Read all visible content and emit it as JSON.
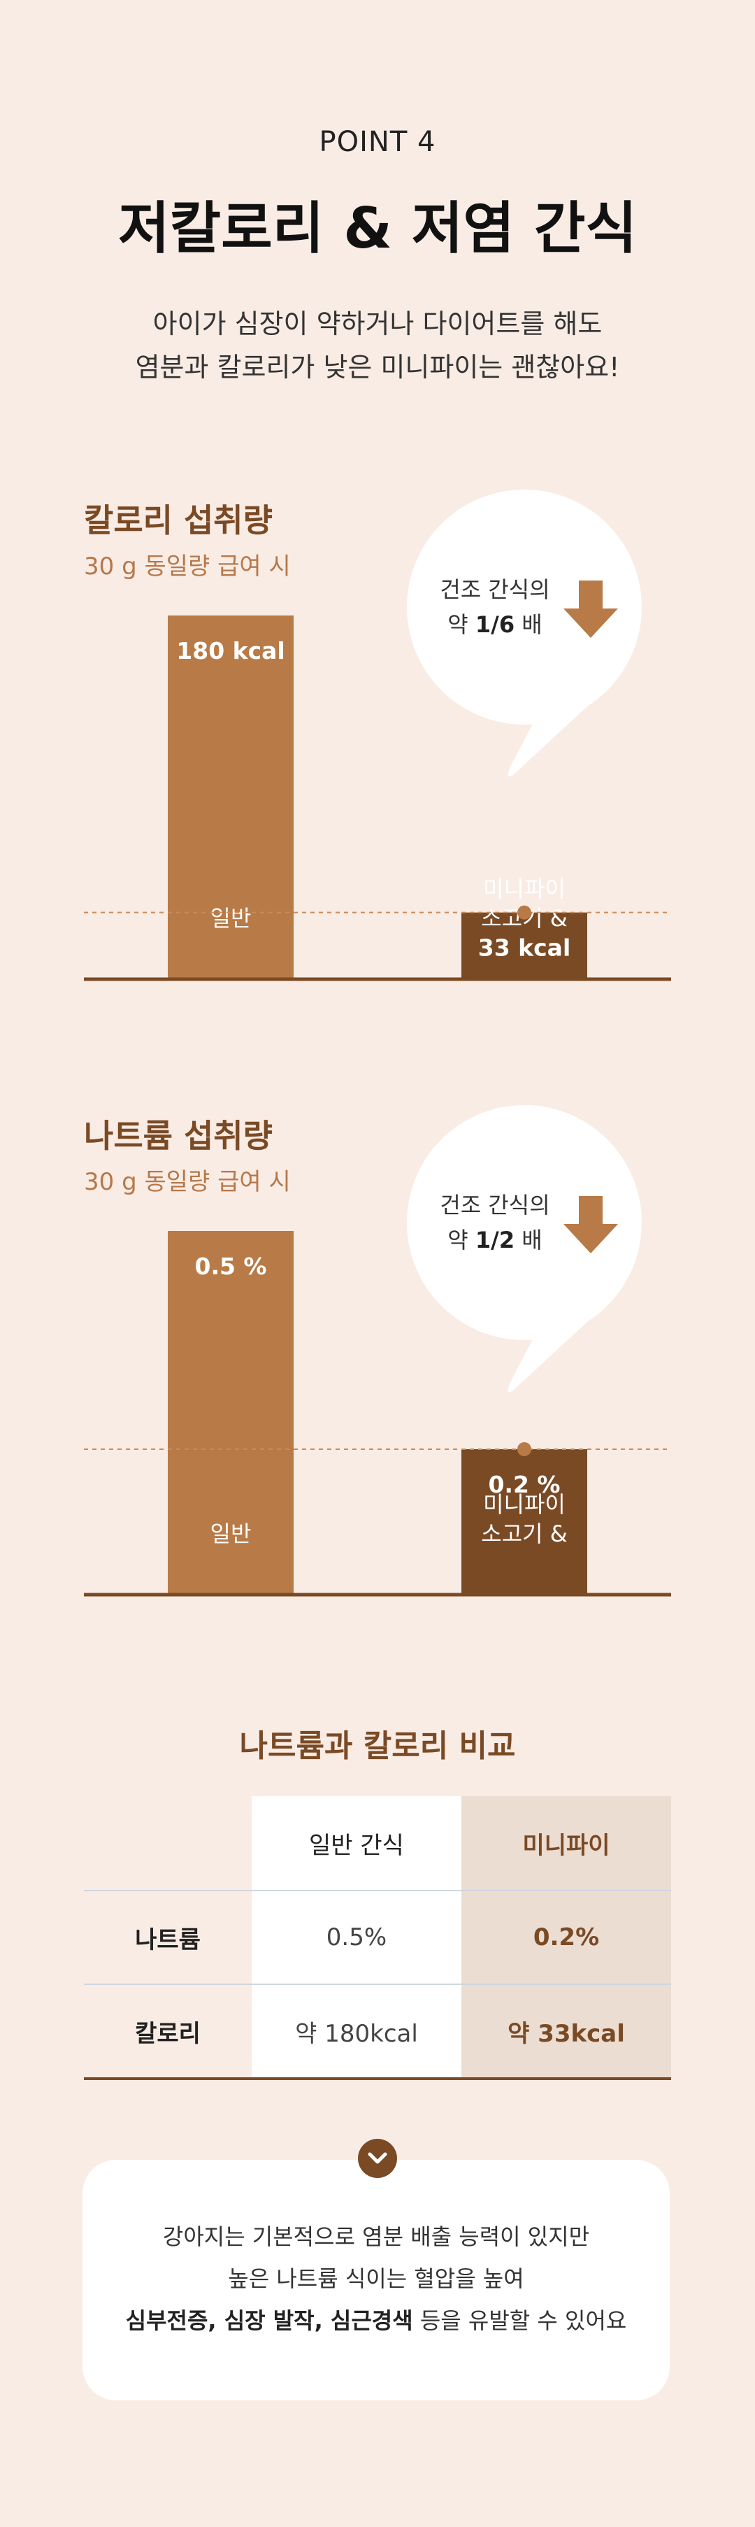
{
  "header": {
    "point": "POINT 4",
    "headline": "저칼로리 & 저염 간식",
    "desc_line1": "아이가 심장이 약하거나 다이어트를 해도",
    "desc_line2": "염분과 칼로리가 낮은 미니파이는 괜찮아요!"
  },
  "colors": {
    "general_bar": "#b87a46",
    "mini_bar": "#7a4a25",
    "background": "#f9ece5"
  },
  "chart_data": [
    {
      "type": "bar",
      "title": "칼로리 섭취량",
      "subtitle": "30 g 동일량 급여 시",
      "categories": [
        "일반",
        "미니파이 소고기 &"
      ],
      "values": [
        180,
        33
      ],
      "value_labels": [
        "180 kcal",
        "33 kcal"
      ],
      "category_lines": [
        [
          "일반"
        ],
        [
          "미니파이",
          "소고기 &"
        ]
      ],
      "unit": "kcal",
      "callout": {
        "line1": "건조 간식의",
        "prefix": "약 ",
        "ratio": "1/6",
        "suffix": " 배"
      }
    },
    {
      "type": "bar",
      "title": "나트륨 섭취량",
      "subtitle": "30 g 동일량 급여 시",
      "categories": [
        "일반",
        "미니파이 소고기 &"
      ],
      "values": [
        0.5,
        0.2
      ],
      "value_labels": [
        "0.5 %",
        "0.2 %"
      ],
      "category_lines": [
        [
          "일반"
        ],
        [
          "미니파이",
          "소고기 &"
        ]
      ],
      "unit": "%",
      "callout": {
        "line1": "건조 간식의",
        "prefix": "약 ",
        "ratio": "1/2",
        "suffix": " 배"
      }
    }
  ],
  "table": {
    "title": "나트륨과 칼로리 비교",
    "columns": [
      "",
      "일반 간식",
      "미니파이"
    ],
    "rows": [
      {
        "label": "나트륨",
        "general": "0.5%",
        "mini": "0.2%"
      },
      {
        "label": "칼로리",
        "general": "약 180kcal",
        "mini": "약 33kcal"
      }
    ]
  },
  "note": {
    "line1": "강아지는 기본적으로 염분 배출 능력이 있지만",
    "line2": "높은 나트륨 식이는 혈압을 높여",
    "line3_bold": "심부전증, 심장 발작, 심근경색",
    "line3_rest": " 등을 유발할 수 있어요"
  }
}
